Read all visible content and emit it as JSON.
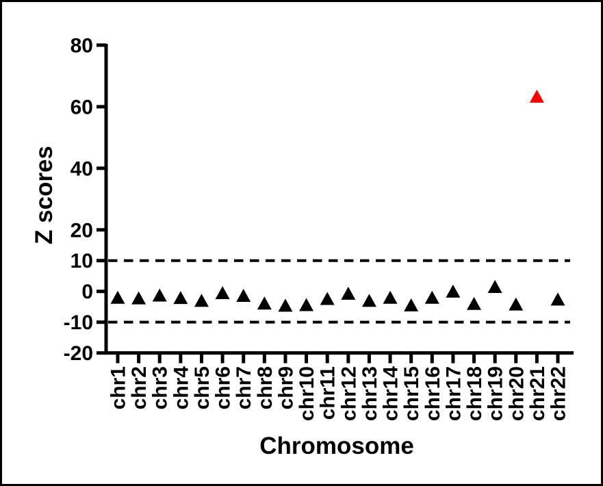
{
  "figure": {
    "background_color": "#ffffff",
    "frame_border_color": "#000000"
  },
  "chart_data": {
    "type": "scatter",
    "marker_shape": "triangle-up",
    "title": "",
    "xlabel": "Chromosome",
    "ylabel": "Z scores",
    "categories": [
      "chr1",
      "chr2",
      "chr3",
      "chr4",
      "chr5",
      "chr6",
      "chr7",
      "chr8",
      "chr9",
      "chr10",
      "chr11",
      "chr12",
      "chr13",
      "chr14",
      "chr15",
      "chr16",
      "chr17",
      "chr18",
      "chr19",
      "chr20",
      "chr21",
      "chr22"
    ],
    "values": [
      -2.0,
      -2.2,
      -1.3,
      -2.1,
      -3.0,
      -0.5,
      -1.4,
      -3.9,
      -4.6,
      -4.4,
      -2.4,
      -0.7,
      -3.0,
      -2.0,
      -4.5,
      -2.0,
      0.0,
      -4.0,
      1.5,
      -4.2,
      63.3,
      -2.6
    ],
    "default_marker_color": "#000000",
    "highlight": {
      "category": "chr21",
      "value": 63.3,
      "color": "#ff0000"
    },
    "threshold_lines": {
      "values": [
        10,
        -10
      ],
      "style": "dashed",
      "color": "#000000"
    },
    "y_ticks": [
      80,
      60,
      40,
      20,
      10,
      0,
      -10,
      -20
    ],
    "ylim": [
      -20,
      80
    ],
    "grid": false,
    "legend": false,
    "axis_color": "#000000"
  }
}
